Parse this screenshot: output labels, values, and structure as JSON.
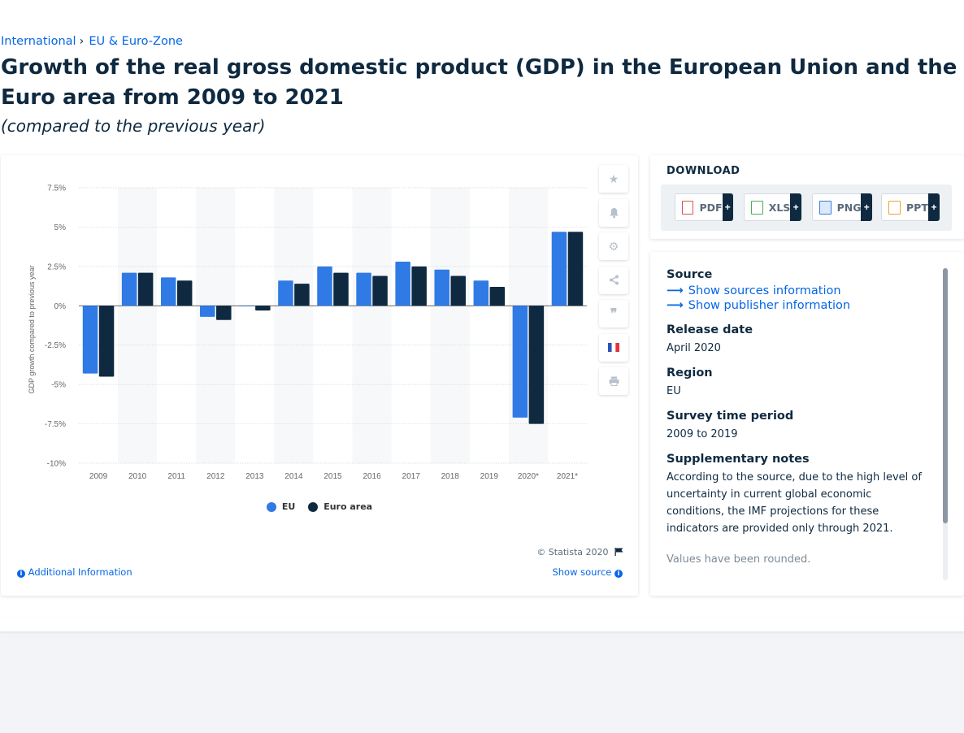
{
  "breadcrumb": [
    "International",
    "EU & Euro-Zone"
  ],
  "title": "Growth of the real gross domestic product (GDP) in the European Union and the Euro area from 2009 to 2021",
  "subtitle": "(compared to the previous year)",
  "chart_data": {
    "type": "bar",
    "categories": [
      "2009",
      "2010",
      "2011",
      "2012",
      "2013",
      "2014",
      "2015",
      "2016",
      "2017",
      "2018",
      "2019",
      "2020*",
      "2021*"
    ],
    "series": [
      {
        "name": "EU",
        "color": "#2f7ae5",
        "values": [
          -4.3,
          2.1,
          1.8,
          -0.7,
          0.0,
          1.6,
          2.5,
          2.1,
          2.8,
          2.3,
          1.6,
          -7.1,
          4.7
        ]
      },
      {
        "name": "Euro area",
        "color": "#0f2a40",
        "values": [
          -4.5,
          2.1,
          1.6,
          -0.9,
          -0.3,
          1.4,
          2.1,
          1.9,
          2.5,
          1.9,
          1.2,
          -7.5,
          4.7
        ]
      }
    ],
    "ylabel": "GDP growth compared to previous year",
    "ylim": [
      -10,
      7.5
    ],
    "yticks": [
      7.5,
      5,
      2.5,
      0,
      -2.5,
      -5,
      -7.5,
      -10
    ],
    "ytick_labels": [
      "7.5%",
      "5%",
      "2.5%",
      "0%",
      "-2.5%",
      "-5%",
      "-7.5%",
      "-10%"
    ],
    "grid": true,
    "legend": "bottom-center"
  },
  "chart_footer": {
    "copyright": "© Statista 2020",
    "additional_info": "Additional Information",
    "show_source": "Show source"
  },
  "download": {
    "title": "DOWNLOAD",
    "buttons": [
      {
        "label": "PDF",
        "icon": "pdf-file-icon",
        "color": "#d9534f"
      },
      {
        "label": "XLS",
        "icon": "xls-file-icon",
        "color": "#4caf50"
      },
      {
        "label": "PNG",
        "icon": "png-file-icon",
        "color": "#3b7dd8"
      },
      {
        "label": "PPT",
        "icon": "ppt-file-icon",
        "color": "#f0a030"
      }
    ],
    "plus": "+"
  },
  "meta": {
    "source_h": "Source",
    "show_sources": "Show sources information",
    "show_publisher": "Show publisher information",
    "release_h": "Release date",
    "release_v": "April 2020",
    "region_h": "Region",
    "region_v": "EU",
    "survey_h": "Survey time period",
    "survey_v": "2009 to 2019",
    "notes_h": "Supplementary notes",
    "notes_v": "According to the source, due to the high level of uncertainty in current global economic conditions, the IMF projections for these indicators are provided only through 2021.",
    "notes_more": "Values have been rounded."
  }
}
